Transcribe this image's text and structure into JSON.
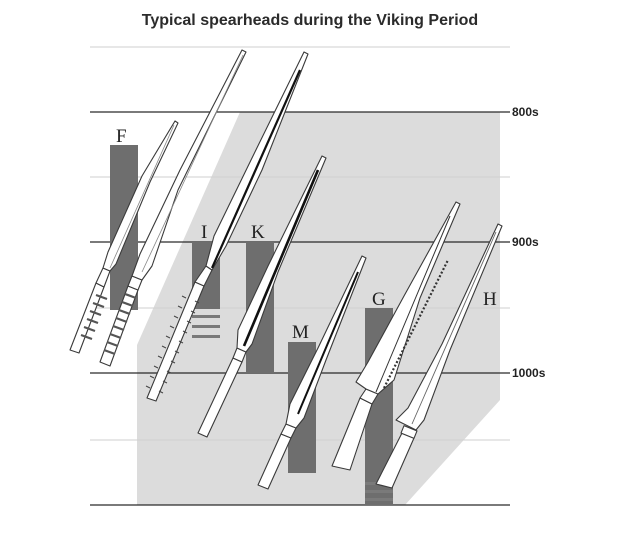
{
  "title": "Typical spearheads during the Viking Period",
  "centuries": [
    "800s",
    "900s",
    "1000s"
  ],
  "types": [
    {
      "id": "F",
      "label": "F"
    },
    {
      "id": "I",
      "label": "I"
    },
    {
      "id": "K",
      "label": "K"
    },
    {
      "id": "M",
      "label": "M"
    },
    {
      "id": "G",
      "label": "G"
    },
    {
      "id": "H",
      "label": "H"
    }
  ],
  "colors": {
    "band": "#dcdcdc",
    "bar": "#6e6e6e",
    "gridline": "#2a2a2a",
    "subgrid": "#cfcfcf",
    "spear_fill": "#ffffff",
    "spear_stroke": "#3a3a3a"
  }
}
